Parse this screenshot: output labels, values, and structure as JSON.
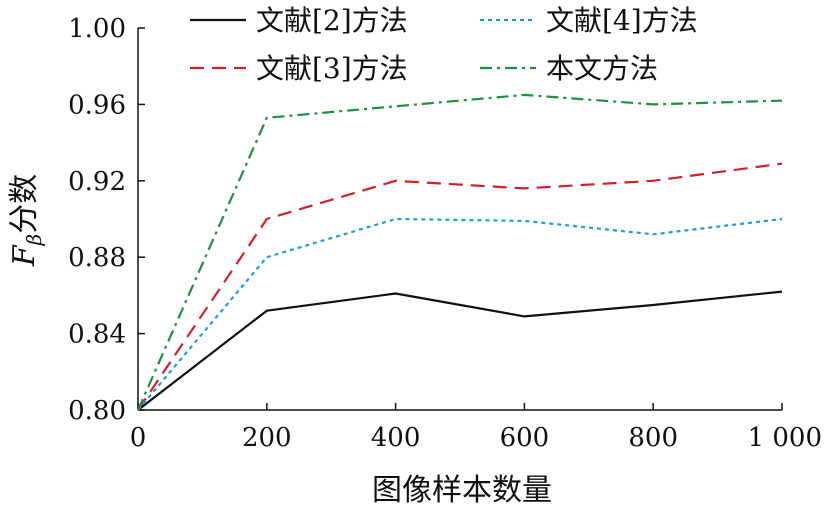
{
  "chart_data": {
    "type": "line",
    "xlabel": "图像样本数量",
    "ylabel_main": "F",
    "ylabel_sub": "β",
    "ylabel_suffix": "分数",
    "x": [
      0,
      200,
      400,
      600,
      800,
      1000
    ],
    "x_tick_labels": [
      "0",
      "200",
      "400",
      "600",
      "800",
      "1 000"
    ],
    "y_tick_labels": [
      "0.80",
      "0.84",
      "0.88",
      "0.92",
      "0.96",
      "1.00"
    ],
    "y_ticks": [
      0.8,
      0.84,
      0.88,
      0.92,
      0.96,
      1.0
    ],
    "xlim": [
      0,
      1000
    ],
    "ylim": [
      0.8,
      1.0
    ],
    "grid": false,
    "legend_position": "top",
    "series": [
      {
        "name": "文献[2]方法",
        "values": [
          0.8,
          0.852,
          0.861,
          0.849,
          0.855,
          0.862
        ],
        "color": "#111111",
        "style": "solid"
      },
      {
        "name": "文献[3]方法",
        "values": [
          0.8,
          0.9,
          0.92,
          0.916,
          0.92,
          0.929
        ],
        "color": "#d0202a",
        "style": "dashed"
      },
      {
        "name": "文献[4]方法",
        "values": [
          0.8,
          0.88,
          0.9,
          0.899,
          0.892,
          0.9
        ],
        "color": "#1a9fd9",
        "style": "dotted"
      },
      {
        "name": "本文方法",
        "values": [
          0.8,
          0.953,
          0.959,
          0.965,
          0.96,
          0.962
        ],
        "color": "#1e9040",
        "style": "dashdot"
      }
    ]
  }
}
